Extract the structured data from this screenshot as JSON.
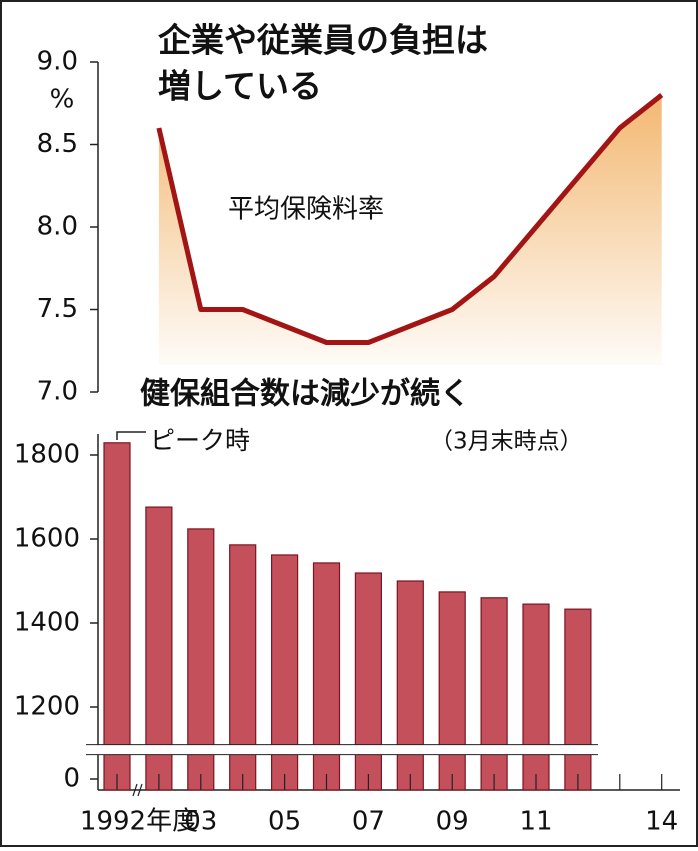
{
  "chart_data": [
    {
      "type": "line",
      "title": [
        "企業や従業員の負担は",
        "増している"
      ],
      "unit": "%",
      "series": [
        {
          "name": "平均保険料率",
          "color": "#a31414",
          "values": [
            null,
            8.6,
            7.5,
            7.5,
            7.4,
            7.3,
            7.3,
            7.4,
            7.5,
            7.7,
            8.0,
            8.3,
            8.6,
            8.8
          ]
        }
      ],
      "area_color": "#f2b46a",
      "ylim": [
        7.0,
        9.0
      ],
      "yticks": [
        {
          "value": 9.0,
          "label": "9.0"
        },
        {
          "value": 8.5,
          "label": "8.5"
        },
        {
          "value": 8.0,
          "label": "8.0"
        },
        {
          "value": 7.5,
          "label": "7.5"
        },
        {
          "value": 7.0,
          "label": "7.0"
        }
      ]
    },
    {
      "type": "bar",
      "title": "健保組合数は減少が続く",
      "subtitle": "（3月末時点）",
      "annotation": "ピーク時",
      "categories": [
        "1992年度",
        null,
        "03",
        null,
        "05",
        null,
        "07",
        null,
        "09",
        null,
        "11",
        null,
        null,
        "14"
      ],
      "values": [
        1829,
        1676,
        1624,
        1586,
        1562,
        1543,
        1519,
        1500,
        1474,
        1460,
        1445,
        1433,
        null,
        null
      ],
      "color": "#c4505c",
      "ylim": [
        0,
        1850
      ],
      "axis_break": [
        0,
        1120
      ],
      "yticks": [
        1800,
        1600,
        1400,
        1200,
        0
      ]
    }
  ]
}
